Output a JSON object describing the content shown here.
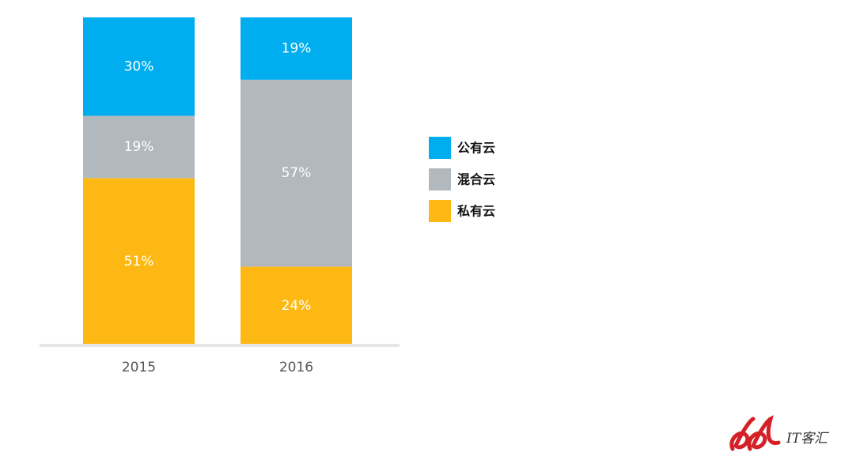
{
  "chart_data": {
    "type": "bar",
    "stacked": true,
    "categories": [
      "2015",
      "2016"
    ],
    "series": [
      {
        "name": "私有云",
        "values": [
          51,
          24
        ],
        "labels": [
          "51%",
          "24%"
        ],
        "color": "#FDB813"
      },
      {
        "name": "混合云",
        "values": [
          19,
          57
        ],
        "labels": [
          "19%",
          "57%"
        ],
        "color": "#B1B8BE"
      },
      {
        "name": "公有云",
        "values": [
          30,
          19
        ],
        "labels": [
          "30%",
          "19%"
        ],
        "color": "#00AEEF"
      }
    ],
    "legend_order": [
      "公有云",
      "混合云",
      "私有云"
    ],
    "ylim": [
      0,
      100
    ],
    "grid": false,
    "legend_position": "right"
  },
  "watermark": {
    "text": "IT客汇",
    "logo_color": "#D42027"
  }
}
